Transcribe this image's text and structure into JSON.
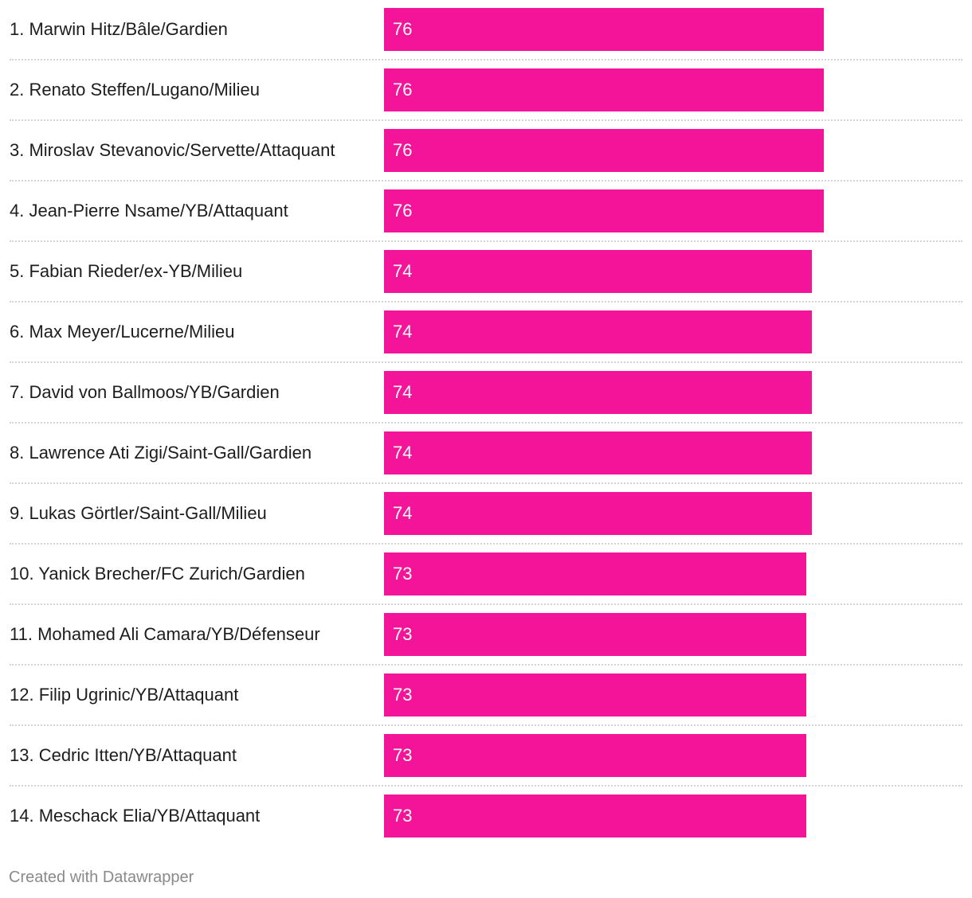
{
  "chart_data": {
    "type": "bar",
    "orientation": "horizontal",
    "title": "",
    "xlabel": "",
    "ylabel": "",
    "xlim": [
      0,
      100
    ],
    "bar_color": "#f4149a",
    "categories": [
      "1. Marwin Hitz/Bâle/Gardien",
      "2. Renato Steffen/Lugano/Milieu",
      "3. Miroslav Stevanovic/Servette/Attaquant",
      "4. Jean-Pierre Nsame/YB/Attaquant",
      "5. Fabian Rieder/ex-YB/Milieu",
      "6. Max Meyer/Lucerne/Milieu",
      "7. David von Ballmoos/YB/Gardien",
      "8. Lawrence Ati Zigi/Saint-Gall/Gardien",
      "9. Lukas Görtler/Saint-Gall/Milieu",
      "10. Yanick Brecher/FC Zurich/Gardien",
      "11. Mohamed Ali Camara/YB/Défenseur",
      "12. Filip Ugrinic/YB/Attaquant",
      "13. Cedric Itten/YB/Attaquant",
      "14. Meschack Elia/YB/Attaquant"
    ],
    "values": [
      76,
      76,
      76,
      76,
      74,
      74,
      74,
      74,
      74,
      73,
      73,
      73,
      73,
      73
    ]
  },
  "footer": "Created with Datawrapper"
}
